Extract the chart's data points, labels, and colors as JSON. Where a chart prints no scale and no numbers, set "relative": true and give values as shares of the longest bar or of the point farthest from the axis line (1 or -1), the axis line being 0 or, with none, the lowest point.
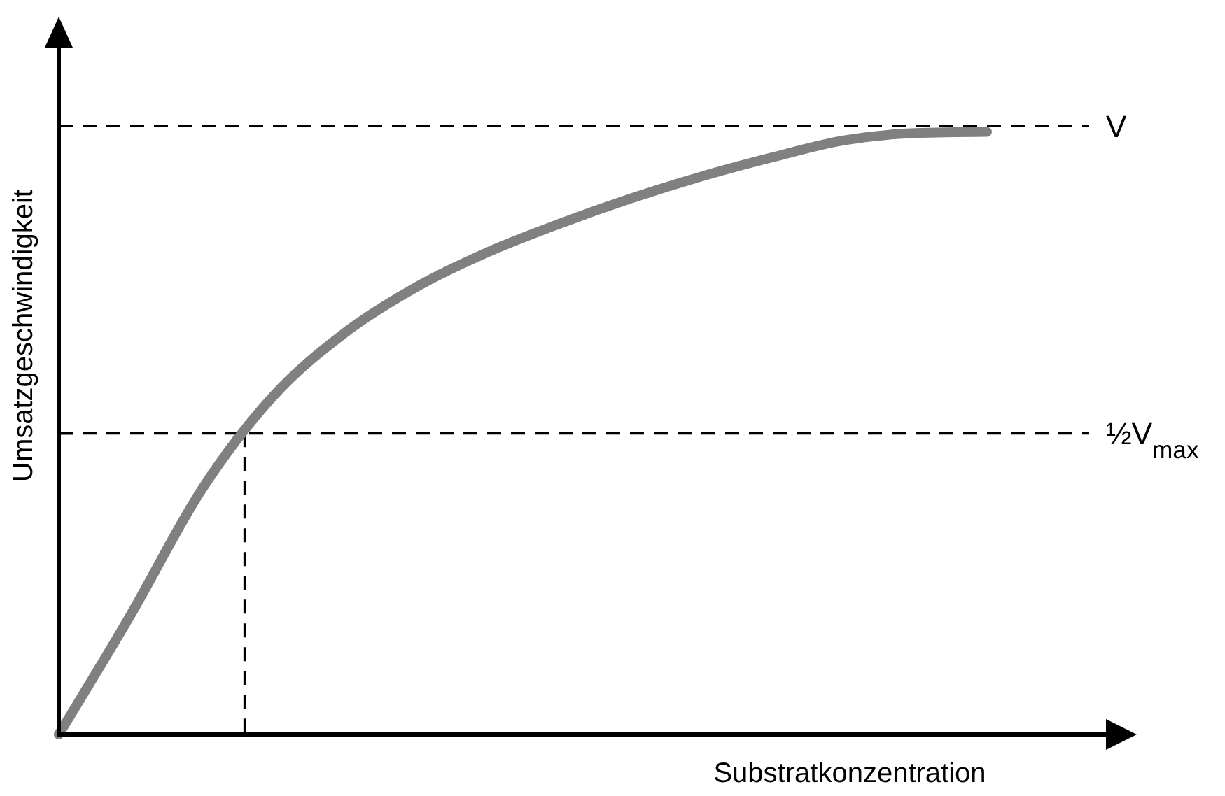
{
  "chart_data": {
    "type": "line",
    "relative": true,
    "xlabel": "Substratkonzentration",
    "ylabel": "Umsatzgeschwindigkeit",
    "categories": [
      null,
      null,
      null,
      null,
      null,
      null,
      null,
      null,
      null,
      null,
      null,
      null,
      null,
      null
    ],
    "series": [
      {
        "color": "#808080",
        "values": [
          0,
          0.197,
          0.406,
          0.561,
          0.666,
          0.742,
          0.8,
          0.847,
          0.889,
          0.926,
          0.958,
          0.986,
          0.998,
          1
        ]
      }
    ],
    "ref_lines": [
      {
        "axis": "y",
        "value": 1.01,
        "label": "V",
        "line_style": "dashed",
        "color": "#000000"
      },
      {
        "axis": "y",
        "value": 0.5,
        "label": "½V$_{max}$",
        "line_style": "dashed",
        "color": "#000000"
      }
    ],
    "line_style": "solid"
  }
}
